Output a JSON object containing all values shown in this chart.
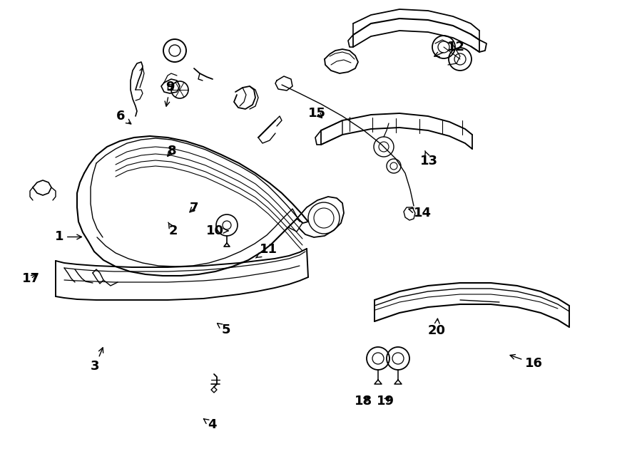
{
  "bg_color": "#ffffff",
  "line_color": "#000000",
  "fig_width": 9.0,
  "fig_height": 6.61,
  "dpi": 100,
  "labels": {
    "1": [
      0.092,
      0.497,
      0.132,
      0.497
    ],
    "2": [
      0.27,
      0.51,
      0.262,
      0.528
    ],
    "3": [
      0.148,
      0.222,
      0.162,
      0.268
    ],
    "4": [
      0.33,
      0.098,
      0.316,
      0.112
    ],
    "5": [
      0.352,
      0.3,
      0.337,
      0.315
    ],
    "6": [
      0.188,
      0.753,
      0.208,
      0.733
    ],
    "7": [
      0.302,
      0.558,
      0.292,
      0.545
    ],
    "8": [
      0.268,
      0.68,
      0.258,
      0.663
    ],
    "9": [
      0.265,
      0.815,
      0.258,
      0.768
    ],
    "10": [
      0.335,
      0.51,
      0.36,
      0.51
    ],
    "11": [
      0.418,
      0.47,
      0.398,
      0.452
    ],
    "12": [
      0.71,
      0.9,
      0.672,
      0.878
    ],
    "13": [
      0.668,
      0.658,
      0.662,
      0.68
    ],
    "14": [
      0.658,
      0.548,
      0.632,
      0.558
    ],
    "15": [
      0.494,
      0.76,
      0.505,
      0.745
    ],
    "16": [
      0.832,
      0.228,
      0.79,
      0.248
    ],
    "17": [
      0.048,
      0.408,
      0.06,
      0.422
    ],
    "18": [
      0.566,
      0.148,
      0.578,
      0.162
    ],
    "19": [
      0.6,
      0.148,
      0.61,
      0.162
    ],
    "20": [
      0.68,
      0.298,
      0.682,
      0.33
    ]
  }
}
